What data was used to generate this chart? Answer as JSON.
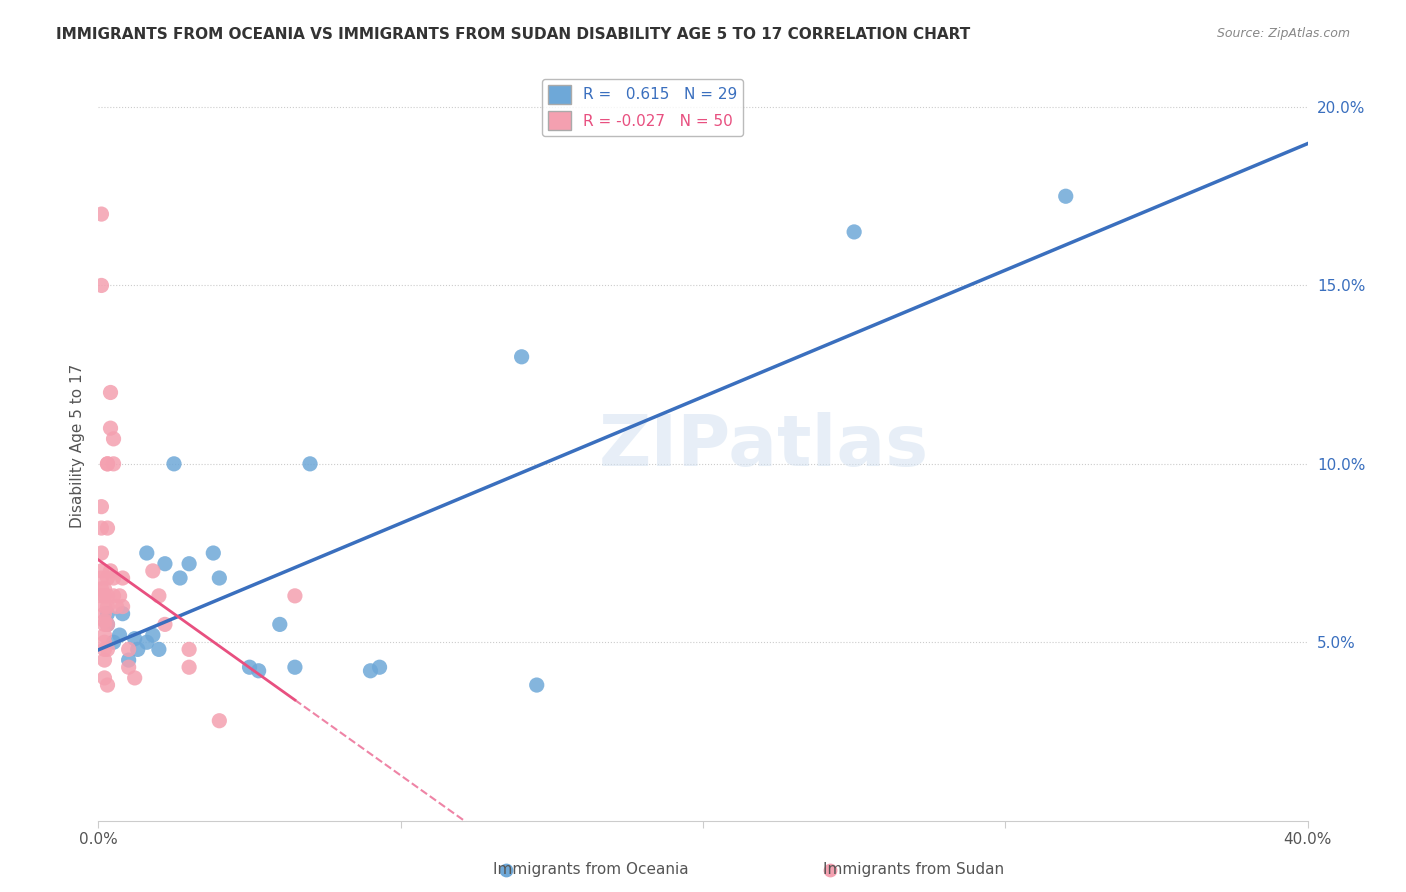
{
  "title": "IMMIGRANTS FROM OCEANIA VS IMMIGRANTS FROM SUDAN DISABILITY AGE 5 TO 17 CORRELATION CHART",
  "source": "Source: ZipAtlas.com",
  "ylabel": "Disability Age 5 to 17",
  "xlim": [
    0.0,
    0.4
  ],
  "ylim": [
    0.0,
    0.21
  ],
  "legend_r_oceania": "0.615",
  "legend_n_oceania": "29",
  "legend_r_sudan": "-0.027",
  "legend_n_sudan": "50",
  "blue_color": "#6ea8d8",
  "pink_color": "#f4a0b0",
  "line_blue": "#3a6fbe",
  "line_pink": "#e85080",
  "watermark": "ZIPatlas",
  "oceania_points": [
    [
      0.003,
      0.055
    ],
    [
      0.003,
      0.058
    ],
    [
      0.005,
      0.05
    ],
    [
      0.007,
      0.052
    ],
    [
      0.008,
      0.058
    ],
    [
      0.01,
      0.045
    ],
    [
      0.012,
      0.051
    ],
    [
      0.013,
      0.048
    ],
    [
      0.016,
      0.075
    ],
    [
      0.016,
      0.05
    ],
    [
      0.018,
      0.052
    ],
    [
      0.02,
      0.048
    ],
    [
      0.022,
      0.072
    ],
    [
      0.025,
      0.1
    ],
    [
      0.027,
      0.068
    ],
    [
      0.03,
      0.072
    ],
    [
      0.038,
      0.075
    ],
    [
      0.04,
      0.068
    ],
    [
      0.05,
      0.043
    ],
    [
      0.053,
      0.042
    ],
    [
      0.06,
      0.055
    ],
    [
      0.065,
      0.043
    ],
    [
      0.07,
      0.1
    ],
    [
      0.09,
      0.042
    ],
    [
      0.093,
      0.043
    ],
    [
      0.14,
      0.13
    ],
    [
      0.145,
      0.038
    ],
    [
      0.25,
      0.165
    ],
    [
      0.32,
      0.175
    ]
  ],
  "sudan_points": [
    [
      0.001,
      0.17
    ],
    [
      0.001,
      0.15
    ],
    [
      0.001,
      0.088
    ],
    [
      0.001,
      0.082
    ],
    [
      0.001,
      0.075
    ],
    [
      0.001,
      0.07
    ],
    [
      0.001,
      0.068
    ],
    [
      0.001,
      0.065
    ],
    [
      0.001,
      0.063
    ],
    [
      0.002,
      0.065
    ],
    [
      0.002,
      0.063
    ],
    [
      0.002,
      0.06
    ],
    [
      0.002,
      0.058
    ],
    [
      0.002,
      0.056
    ],
    [
      0.002,
      0.055
    ],
    [
      0.002,
      0.052
    ],
    [
      0.002,
      0.05
    ],
    [
      0.002,
      0.048
    ],
    [
      0.002,
      0.045
    ],
    [
      0.002,
      0.04
    ],
    [
      0.003,
      0.1
    ],
    [
      0.003,
      0.1
    ],
    [
      0.003,
      0.082
    ],
    [
      0.003,
      0.068
    ],
    [
      0.003,
      0.063
    ],
    [
      0.003,
      0.06
    ],
    [
      0.003,
      0.055
    ],
    [
      0.003,
      0.048
    ],
    [
      0.003,
      0.038
    ],
    [
      0.004,
      0.12
    ],
    [
      0.004,
      0.11
    ],
    [
      0.004,
      0.07
    ],
    [
      0.005,
      0.107
    ],
    [
      0.005,
      0.1
    ],
    [
      0.005,
      0.068
    ],
    [
      0.005,
      0.063
    ],
    [
      0.006,
      0.06
    ],
    [
      0.007,
      0.063
    ],
    [
      0.008,
      0.068
    ],
    [
      0.008,
      0.06
    ],
    [
      0.01,
      0.048
    ],
    [
      0.01,
      0.043
    ],
    [
      0.012,
      0.04
    ],
    [
      0.018,
      0.07
    ],
    [
      0.02,
      0.063
    ],
    [
      0.022,
      0.055
    ],
    [
      0.03,
      0.048
    ],
    [
      0.03,
      0.043
    ],
    [
      0.04,
      0.028
    ],
    [
      0.065,
      0.063
    ]
  ]
}
